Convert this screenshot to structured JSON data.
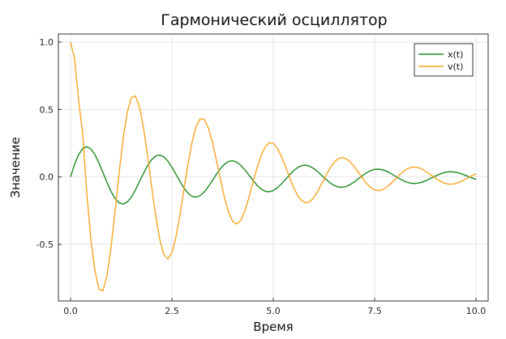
{
  "chart_data": {
    "type": "line",
    "title": "Гармонический осциллятор",
    "xlabel": "Время",
    "ylabel": "Значение",
    "xlim": [
      -0.3,
      10.3
    ],
    "ylim": [
      -0.92,
      1.06
    ],
    "xticks": [
      0.0,
      2.5,
      5.0,
      7.5,
      10.0
    ],
    "xtick_labels": [
      "0.0",
      "2.5",
      "5.0",
      "7.5",
      "10.0"
    ],
    "yticks": [
      -0.5,
      0.0,
      0.5,
      1.0
    ],
    "ytick_labels": [
      "-0.5",
      "0.0",
      "0.5",
      "1.0"
    ],
    "grid": true,
    "legend_position": "top-right",
    "x_step": 0.1,
    "series": [
      {
        "name": "x(t)",
        "color": "#1f8a1f",
        "values": [
          0.0,
          0.0937,
          0.1662,
          0.2106,
          0.2241,
          0.2076,
          0.1654,
          0.1042,
          0.0321,
          -0.0416,
          -0.1087,
          -0.1611,
          -0.1931,
          -0.2012,
          -0.1856,
          -0.1491,
          -0.0969,
          -0.0357,
          0.0269,
          0.0839,
          0.1282,
          0.1552,
          0.1619,
          0.1485,
          0.117,
          0.0721,
          0.0194,
          -0.0345,
          -0.0835,
          -0.1215,
          -0.1445,
          -0.1499,
          -0.1377,
          -0.1101,
          -0.0712,
          -0.0258,
          0.0207,
          0.0629,
          0.0955,
          0.1152,
          0.1199,
          0.1096,
          0.086,
          0.0528,
          0.014,
          -0.0257,
          -0.0618,
          -0.0896,
          -0.1063,
          -0.1101,
          -0.1012,
          -0.0807,
          -0.052,
          -0.0189,
          0.015,
          0.0458,
          0.0695,
          0.0837,
          0.0868,
          0.0791,
          0.0619,
          0.0378,
          0.0101,
          -0.0181,
          -0.0435,
          -0.063,
          -0.0745,
          -0.077,
          -0.0706,
          -0.0564,
          -0.0366,
          -0.0138,
          0.0095,
          0.0306,
          0.0467,
          0.0561,
          0.058,
          0.0526,
          0.0412,
          0.0254,
          0.0075,
          -0.0106,
          -0.0271,
          -0.0397,
          -0.0472,
          -0.0488,
          -0.0446,
          -0.0355,
          -0.0229,
          -0.0083,
          0.0066,
          0.0202,
          0.0307,
          0.0371,
          0.0383,
          0.0347,
          0.027,
          0.0164,
          0.0044,
          -0.0077,
          -0.0187
        ]
      },
      {
        "name": "v(t)",
        "color": "#f5a623",
        "values": [
          1.0,
          0.8736,
          0.5646,
          0.3189,
          -0.1189,
          -0.4623,
          -0.6927,
          -0.832,
          -0.8449,
          -0.7313,
          -0.5185,
          -0.2469,
          0.0354,
          0.2892,
          0.481,
          0.5883,
          0.6001,
          0.5204,
          0.3644,
          0.1562,
          -0.0732,
          -0.2888,
          -0.4628,
          -0.5747,
          -0.6092,
          -0.5637,
          -0.4469,
          -0.279,
          -0.087,
          0.1007,
          0.2626,
          0.3777,
          0.4323,
          0.4256,
          0.3626,
          0.2551,
          0.1199,
          -0.0248,
          -0.1589,
          -0.265,
          -0.3308,
          -0.3493,
          -0.3205,
          -0.2511,
          -0.1528,
          -0.0408,
          0.0676,
          0.1591,
          0.2234,
          0.2537,
          0.2491,
          0.2131,
          0.1529,
          0.0783,
          -0.0013,
          -0.076,
          -0.1372,
          -0.1771,
          -0.1923,
          -0.1833,
          -0.1529,
          -0.1055,
          -0.0482,
          0.0111,
          0.0655,
          0.1083,
          0.1348,
          0.1434,
          0.1348,
          0.1109,
          0.0755,
          0.0336,
          -0.0092,
          -0.0478,
          -0.0781,
          -0.0968,
          -0.1022,
          -0.0945,
          -0.0756,
          -0.0491,
          -0.0189,
          0.0111,
          0.0384,
          0.0591,
          0.0711,
          0.0736,
          0.0671,
          0.053,
          0.0338,
          0.012,
          -0.0097,
          -0.029,
          -0.0438,
          -0.0525,
          -0.0542,
          -0.0489,
          -0.038,
          -0.0234,
          -0.0071,
          0.0089,
          0.0232
        ]
      }
    ]
  }
}
